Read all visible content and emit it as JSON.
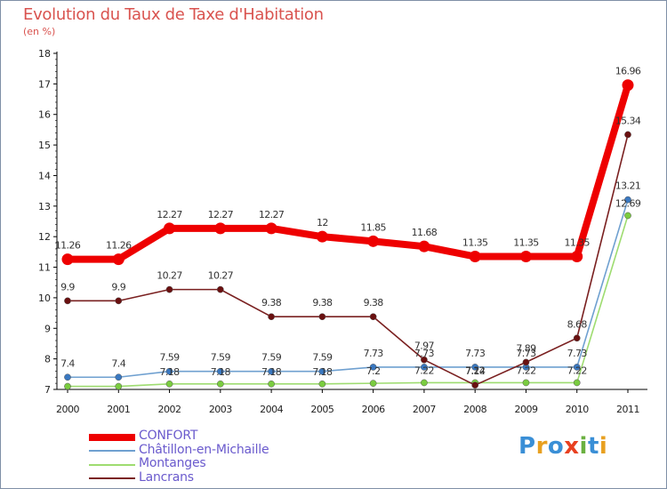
{
  "title": "Evolution du Taux de Taxe d'Habitation",
  "unit_label": "(en %)",
  "logo": {
    "text": "Proxiti",
    "letters": [
      {
        "char": "P",
        "color": "#3a8fd6"
      },
      {
        "char": "r",
        "color": "#e8a020"
      },
      {
        "char": "o",
        "color": "#3a8fd6"
      },
      {
        "char": "x",
        "color": "#e84020"
      },
      {
        "char": "i",
        "color": "#6ab040"
      },
      {
        "char": "t",
        "color": "#3a8fd6"
      },
      {
        "char": "i",
        "color": "#e8a020"
      }
    ]
  },
  "chart_data": {
    "type": "line",
    "title": "Evolution du Taux de Taxe d'Habitation",
    "ylabel": "(en %)",
    "xlabel": "",
    "ylim": [
      7,
      18
    ],
    "yticks": [
      7,
      8,
      9,
      10,
      11,
      12,
      13,
      14,
      15,
      16,
      17,
      18
    ],
    "categories": [
      "2000",
      "2001",
      "2002",
      "2003",
      "2004",
      "2005",
      "2006",
      "2007",
      "2008",
      "2009",
      "2010",
      "2011"
    ],
    "grid": false,
    "legend_position": "bottom-left",
    "series": [
      {
        "name": "CONFORT",
        "color": "#ee0000",
        "marker_color": "#ee0000",
        "emphasis": true,
        "values": [
          11.26,
          11.26,
          12.27,
          12.27,
          12.27,
          12,
          11.85,
          11.68,
          11.35,
          11.35,
          11.35,
          16.96
        ],
        "labels": [
          "11.26",
          "11.26",
          "12.27",
          "12.27",
          "12.27",
          "12",
          "11.85",
          "11.68",
          "11.35",
          "11.35",
          "11.35",
          "16.96"
        ]
      },
      {
        "name": "Châtillon-en-Michaille",
        "color": "#6fa0d0",
        "marker_color": "#3a78c0",
        "emphasis": false,
        "values": [
          7.4,
          7.4,
          7.59,
          7.59,
          7.59,
          7.59,
          7.73,
          7.73,
          7.73,
          7.73,
          7.73,
          13.21
        ],
        "labels": [
          "7.4",
          "7.4",
          "7.59",
          "7.59",
          "7.59",
          "7.59",
          "7.73",
          "7.73",
          "7.73",
          "7.73",
          "7.73",
          "13.21"
        ]
      },
      {
        "name": "Montanges",
        "color": "#9edc70",
        "marker_color": "#7acc40",
        "emphasis": false,
        "values": [
          7.1,
          7.1,
          7.18,
          7.18,
          7.18,
          7.18,
          7.2,
          7.22,
          7.22,
          7.22,
          7.22,
          12.69
        ],
        "labels": [
          "",
          "",
          "7.18",
          "7.18",
          "7.18",
          "7.18",
          "7.2",
          "7.22",
          "7.22",
          "7.22",
          "7.22",
          "12.69"
        ]
      },
      {
        "name": "Lancrans",
        "color": "#7a2020",
        "marker_color": "#6a1010",
        "emphasis": false,
        "values": [
          9.9,
          9.9,
          10.27,
          10.27,
          9.38,
          9.38,
          9.38,
          7.97,
          7.14,
          7.89,
          8.68,
          15.34
        ],
        "labels": [
          "9.9",
          "9.9",
          "10.27",
          "10.27",
          "9.38",
          "9.38",
          "9.38",
          "7.97",
          "7.14",
          "7.89",
          "8.68",
          "15.34"
        ]
      }
    ]
  }
}
